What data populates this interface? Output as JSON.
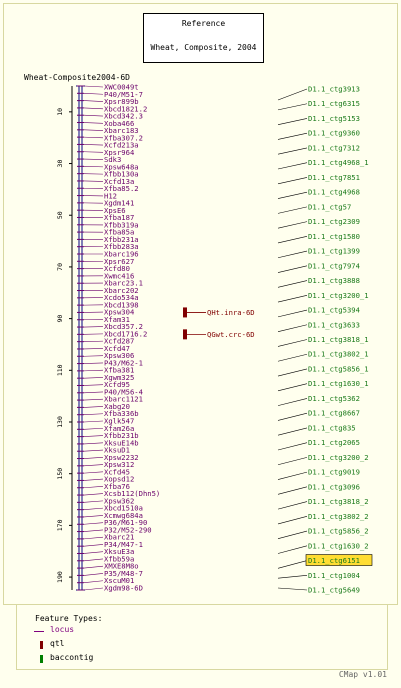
{
  "reference": {
    "title": "Reference",
    "subtitle": "Wheat, Composite, 2004"
  },
  "map_label": "Wheat-Composite2004-6D",
  "axis": {
    "min": 0,
    "max": 195,
    "ticks": [
      10,
      30,
      50,
      70,
      90,
      110,
      130,
      150,
      170,
      190
    ]
  },
  "markers": [
    {
      "label": "XWC0049t",
      "pos": 0
    },
    {
      "label": "P40/M51-7",
      "pos": 2
    },
    {
      "label": "Xpsr899b",
      "pos": 4
    },
    {
      "label": "Xbcd1821.2",
      "pos": 6
    },
    {
      "label": "Xbcd342.3",
      "pos": 8
    },
    {
      "label": "Xoba466",
      "pos": 10
    },
    {
      "label": "Xbarc183",
      "pos": 12
    },
    {
      "label": "Xfba307.2",
      "pos": 14
    },
    {
      "label": "Xcfd213a",
      "pos": 16
    },
    {
      "label": "Xpsr964",
      "pos": 18
    },
    {
      "label": "Sdk3",
      "pos": 20
    },
    {
      "label": "Xpsw648a",
      "pos": 22
    },
    {
      "label": "Xfbb130a",
      "pos": 24
    },
    {
      "label": "Xcfd13a",
      "pos": 26
    },
    {
      "label": "Xfba85.2",
      "pos": 28
    },
    {
      "label": "H12",
      "pos": 30
    },
    {
      "label": "Xgdm141",
      "pos": 32
    },
    {
      "label": "XpsE6",
      "pos": 34
    },
    {
      "label": "Xfba187",
      "pos": 36
    },
    {
      "label": "Xfbb319a",
      "pos": 38
    },
    {
      "label": "Xfba85a",
      "pos": 40
    },
    {
      "label": "Xfbb231a",
      "pos": 42
    },
    {
      "label": "Xfbb283a",
      "pos": 44
    },
    {
      "label": "Xbarc196",
      "pos": 46
    },
    {
      "label": "Xpsr627",
      "pos": 48
    },
    {
      "label": "Xcfd80",
      "pos": 50
    },
    {
      "label": "Xwmc416",
      "pos": 52
    },
    {
      "label": "Xbarc23.1",
      "pos": 54
    },
    {
      "label": "Xbarc202",
      "pos": 56
    },
    {
      "label": "Xcdo534a",
      "pos": 58
    },
    {
      "label": "Xbcd1398",
      "pos": 60
    },
    {
      "label": "Xpsw304",
      "pos": 62
    },
    {
      "label": "Xfam31",
      "pos": 64
    },
    {
      "label": "Xbcd357.2",
      "pos": 66
    },
    {
      "label": "Xbcd1716.2",
      "pos": 68
    },
    {
      "label": "Xcfd287",
      "pos": 70
    },
    {
      "label": "Xcfd47",
      "pos": 72
    },
    {
      "label": "Xpsw306",
      "pos": 74
    },
    {
      "label": "P43/M62-1",
      "pos": 76
    },
    {
      "label": "Xfba381",
      "pos": 78
    },
    {
      "label": "Xgwm325",
      "pos": 80
    },
    {
      "label": "Xcfd95",
      "pos": 82
    },
    {
      "label": "P40/M56-4",
      "pos": 84
    },
    {
      "label": "Xbarc1121",
      "pos": 86
    },
    {
      "label": "Xabg20",
      "pos": 88
    },
    {
      "label": "Xfba336b",
      "pos": 90
    },
    {
      "label": "Xglk547",
      "pos": 92
    },
    {
      "label": "Xfam26a",
      "pos": 94
    },
    {
      "label": "Xfbb231b",
      "pos": 96
    },
    {
      "label": "XksuE14b",
      "pos": 98
    },
    {
      "label": "XksuD1",
      "pos": 100
    },
    {
      "label": "Xpsw2232",
      "pos": 102
    },
    {
      "label": "Xpsw312",
      "pos": 104
    },
    {
      "label": "Xcfd45",
      "pos": 106
    },
    {
      "label": "Xopsd12",
      "pos": 108
    },
    {
      "label": "Xfba76",
      "pos": 110
    },
    {
      "label": "Xcsb112(Dhn5)",
      "pos": 112
    },
    {
      "label": "Xpsw362",
      "pos": 114
    },
    {
      "label": "Xbcd1510a",
      "pos": 116
    },
    {
      "label": "Xcmwg684a",
      "pos": 118
    },
    {
      "label": "P36/M61-90",
      "pos": 120
    },
    {
      "label": "P32/M52-290",
      "pos": 122
    },
    {
      "label": "Xbarc21",
      "pos": 124
    },
    {
      "label": "P34/M47-1",
      "pos": 126
    },
    {
      "label": "XksuE3a",
      "pos": 128
    },
    {
      "label": "Xfbb59a",
      "pos": 130
    },
    {
      "label": "XMXE8M8o",
      "pos": 132
    },
    {
      "label": "P35/M48-7",
      "pos": 134
    },
    {
      "label": "XscuM01",
      "pos": 136
    },
    {
      "label": "Xgdm98-6D",
      "pos": 138
    }
  ],
  "qtls": [
    {
      "label": "QHt.inra-6D",
      "pos": 62
    },
    {
      "label": "QGwt.crc-6D",
      "pos": 68
    }
  ],
  "contigs": [
    {
      "label": "D1.1_ctg3913",
      "pos": 0
    },
    {
      "label": "D1.1_ctg6315",
      "pos": 4
    },
    {
      "label": "D1.1_ctg5153",
      "pos": 10
    },
    {
      "label": "D1.1_ctg9360",
      "pos": 16
    },
    {
      "label": "D1.1_ctg7312",
      "pos": 22
    },
    {
      "label": "D1.1_ctg4968_1",
      "pos": 28
    },
    {
      "label": "D1.1_ctg7851",
      "pos": 34
    },
    {
      "label": "D1.1_ctg4968",
      "pos": 40
    },
    {
      "label": "D1.1_ctg57",
      "pos": 46
    },
    {
      "label": "D1.1_ctg2309",
      "pos": 52
    },
    {
      "label": "D1.1_ctg1580",
      "pos": 58
    },
    {
      "label": "D1.1_ctg1399",
      "pos": 64
    },
    {
      "label": "D1.1_ctg7974",
      "pos": 70
    },
    {
      "label": "D1.1_ctg3888",
      "pos": 76
    },
    {
      "label": "D1.1_ctg3200_1",
      "pos": 82
    },
    {
      "label": "D1.1_ctg5394",
      "pos": 88
    },
    {
      "label": "D1.1_ctg3633",
      "pos": 94
    },
    {
      "label": "D1.1_ctg3818_1",
      "pos": 100
    },
    {
      "label": "D1.1_ctg3802_1",
      "pos": 106
    },
    {
      "label": "D1.1_ctg5856_1",
      "pos": 112
    },
    {
      "label": "D1.1_ctg1630_1",
      "pos": 118
    },
    {
      "label": "D1.1_ctg5362",
      "pos": 124
    },
    {
      "label": "D1.1_ctg8667",
      "pos": 130
    },
    {
      "label": "D1.1_ctg835",
      "pos": 136
    },
    {
      "label": "D1.1_ctg2065",
      "pos": 142
    },
    {
      "label": "D1.1_ctg3200_2",
      "pos": 148
    },
    {
      "label": "D1.1_ctg9019",
      "pos": 154
    },
    {
      "label": "D1.1_ctg3096",
      "pos": 160
    },
    {
      "label": "D1.1_ctg3818_2",
      "pos": 166
    },
    {
      "label": "D1.1_ctg3802_2",
      "pos": 172
    },
    {
      "label": "D1.1_ctg5856_2",
      "pos": 178
    },
    {
      "label": "D1.1_ctg1630_2",
      "pos": 184
    },
    {
      "label": "D1.1_ctg6151",
      "pos": 190,
      "highlight": true
    },
    {
      "label": "D1.1_ctg1004",
      "pos": 194
    },
    {
      "label": "D1.1_ctg5649",
      "pos": 198
    }
  ],
  "legend": {
    "title": "Feature Types:",
    "items": [
      {
        "label": "locus",
        "glyph": "line-icon",
        "color": "#7f007f"
      },
      {
        "label": "qtl",
        "glyph": "bar-icon",
        "color": "#800000"
      },
      {
        "label": "baccontig",
        "glyph": "bar-icon",
        "color": "#007f00"
      }
    ]
  },
  "footer": "CMap v1.01",
  "colors": {
    "marker_text": "#6a006a",
    "contig_text": "#1a7a1a",
    "qtl_text": "#800000",
    "highlight": "#ffdd33",
    "axis": "#000080",
    "tick": "#6a006a"
  }
}
